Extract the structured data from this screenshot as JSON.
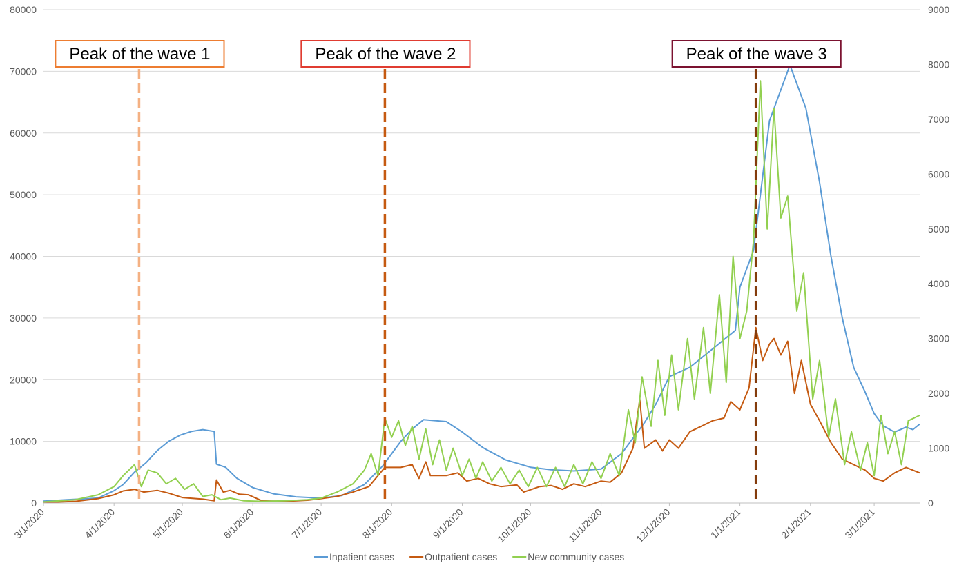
{
  "chart_data": {
    "type": "line",
    "title": "",
    "xlabel": "",
    "ylabel": "",
    "x_ticks": [
      "3/1/2020",
      "4/1/2020",
      "5/1/2020",
      "6/1/2020",
      "7/1/2020",
      "8/1/2020",
      "9/1/2020",
      "10/1/2020",
      "11/1/2020",
      "12/1/2020",
      "1/1/2021",
      "2/1/2021",
      "3/1/2021"
    ],
    "x_range": [
      "2020-03-01",
      "2021-03-21"
    ],
    "y_left_ticks": [
      "0",
      "10000",
      "20000",
      "30000",
      "40000",
      "50000",
      "60000",
      "70000",
      "80000"
    ],
    "y_left_range": [
      0,
      80000
    ],
    "y_right_ticks": [
      "0",
      "1000",
      "2000",
      "3000",
      "4000",
      "5000",
      "6000",
      "7000",
      "8000",
      "9000"
    ],
    "y_right_range": [
      0,
      9000
    ],
    "grid": true,
    "legend_position": "bottom",
    "series": [
      {
        "name": "Inpatient cases",
        "color": "#5B9BD5",
        "axis": "left",
        "points": [
          [
            "2020-03-01",
            300
          ],
          [
            "2020-03-10",
            500
          ],
          [
            "2020-03-20",
            700
          ],
          [
            "2020-03-25",
            800
          ],
          [
            "2020-04-01",
            2000
          ],
          [
            "2020-04-05",
            3000
          ],
          [
            "2020-04-10",
            5000
          ],
          [
            "2020-04-15",
            6500
          ],
          [
            "2020-04-20",
            8500
          ],
          [
            "2020-04-25",
            10000
          ],
          [
            "2020-04-30",
            11000
          ],
          [
            "2020-05-05",
            11600
          ],
          [
            "2020-05-10",
            11900
          ],
          [
            "2020-05-15",
            11600
          ],
          [
            "2020-05-16",
            6300
          ],
          [
            "2020-05-20",
            5800
          ],
          [
            "2020-05-25",
            4000
          ],
          [
            "2020-06-01",
            2500
          ],
          [
            "2020-06-10",
            1500
          ],
          [
            "2020-06-20",
            1000
          ],
          [
            "2020-07-01",
            800
          ],
          [
            "2020-07-10",
            1200
          ],
          [
            "2020-07-20",
            3000
          ],
          [
            "2020-07-28",
            6000
          ],
          [
            "2020-08-05",
            10000
          ],
          [
            "2020-08-10",
            12000
          ],
          [
            "2020-08-15",
            13500
          ],
          [
            "2020-08-25",
            13200
          ],
          [
            "2020-09-01",
            11500
          ],
          [
            "2020-09-10",
            9000
          ],
          [
            "2020-09-20",
            7000
          ],
          [
            "2020-10-01",
            5800
          ],
          [
            "2020-10-10",
            5400
          ],
          [
            "2020-10-20",
            5200
          ],
          [
            "2020-11-01",
            5500
          ],
          [
            "2020-11-10",
            8000
          ],
          [
            "2020-11-20",
            13000
          ],
          [
            "2020-11-25",
            16000
          ],
          [
            "2020-12-01",
            20500
          ],
          [
            "2020-12-10",
            22000
          ],
          [
            "2020-12-20",
            25000
          ],
          [
            "2020-12-30",
            28000
          ],
          [
            "2021-01-01",
            35000
          ],
          [
            "2021-01-07",
            41000
          ],
          [
            "2021-01-10",
            50000
          ],
          [
            "2021-01-14",
            62000
          ],
          [
            "2021-01-18",
            66000
          ],
          [
            "2021-01-21",
            69000
          ],
          [
            "2021-01-23",
            71000
          ],
          [
            "2021-01-27",
            67000
          ],
          [
            "2021-01-30",
            64000
          ],
          [
            "2021-02-05",
            52000
          ],
          [
            "2021-02-10",
            40000
          ],
          [
            "2021-02-15",
            30000
          ],
          [
            "2021-02-20",
            22000
          ],
          [
            "2021-02-25",
            18000
          ],
          [
            "2021-03-01",
            14500
          ],
          [
            "2021-03-05",
            12500
          ],
          [
            "2021-03-10",
            11500
          ],
          [
            "2021-03-15",
            12300
          ],
          [
            "2021-03-18",
            11900
          ],
          [
            "2021-03-21",
            12800
          ]
        ]
      },
      {
        "name": "Outpatient cases",
        "color": "#C55A11",
        "axis": "right",
        "points": [
          [
            "2020-03-01",
            10
          ],
          [
            "2020-03-15",
            30
          ],
          [
            "2020-03-25",
            80
          ],
          [
            "2020-04-01",
            150
          ],
          [
            "2020-04-05",
            220
          ],
          [
            "2020-04-10",
            250
          ],
          [
            "2020-04-14",
            200
          ],
          [
            "2020-04-20",
            230
          ],
          [
            "2020-04-25",
            180
          ],
          [
            "2020-05-01",
            100
          ],
          [
            "2020-05-10",
            70
          ],
          [
            "2020-05-15",
            40
          ],
          [
            "2020-05-16",
            420
          ],
          [
            "2020-05-19",
            200
          ],
          [
            "2020-05-22",
            230
          ],
          [
            "2020-05-26",
            160
          ],
          [
            "2020-05-30",
            150
          ],
          [
            "2020-06-05",
            40
          ],
          [
            "2020-06-15",
            30
          ],
          [
            "2020-06-25",
            50
          ],
          [
            "2020-07-01",
            80
          ],
          [
            "2020-07-08",
            120
          ],
          [
            "2020-07-15",
            200
          ],
          [
            "2020-07-22",
            300
          ],
          [
            "2020-07-29",
            650
          ],
          [
            "2020-08-05",
            650
          ],
          [
            "2020-08-10",
            700
          ],
          [
            "2020-08-13",
            450
          ],
          [
            "2020-08-16",
            750
          ],
          [
            "2020-08-18",
            500
          ],
          [
            "2020-08-25",
            500
          ],
          [
            "2020-08-30",
            550
          ],
          [
            "2020-09-03",
            400
          ],
          [
            "2020-09-08",
            450
          ],
          [
            "2020-09-13",
            350
          ],
          [
            "2020-09-18",
            300
          ],
          [
            "2020-09-25",
            330
          ],
          [
            "2020-09-28",
            200
          ],
          [
            "2020-10-05",
            300
          ],
          [
            "2020-10-10",
            320
          ],
          [
            "2020-10-15",
            250
          ],
          [
            "2020-10-20",
            350
          ],
          [
            "2020-10-25",
            300
          ],
          [
            "2020-11-01",
            400
          ],
          [
            "2020-11-05",
            380
          ],
          [
            "2020-11-10",
            550
          ],
          [
            "2020-11-15",
            1000
          ],
          [
            "2020-11-18",
            1900
          ],
          [
            "2020-11-20",
            1000
          ],
          [
            "2020-11-25",
            1150
          ],
          [
            "2020-11-28",
            950
          ],
          [
            "2020-12-01",
            1150
          ],
          [
            "2020-12-05",
            1000
          ],
          [
            "2020-12-10",
            1300
          ],
          [
            "2020-12-15",
            1400
          ],
          [
            "2020-12-20",
            1500
          ],
          [
            "2020-12-25",
            1550
          ],
          [
            "2020-12-28",
            1850
          ],
          [
            "2021-01-01",
            1700
          ],
          [
            "2021-01-05",
            2100
          ],
          [
            "2021-01-08",
            3200
          ],
          [
            "2021-01-11",
            2600
          ],
          [
            "2021-01-14",
            2900
          ],
          [
            "2021-01-16",
            3000
          ],
          [
            "2021-01-19",
            2700
          ],
          [
            "2021-01-22",
            2950
          ],
          [
            "2021-01-25",
            2000
          ],
          [
            "2021-01-28",
            2600
          ],
          [
            "2021-02-01",
            1800
          ],
          [
            "2021-02-05",
            1500
          ],
          [
            "2021-02-10",
            1100
          ],
          [
            "2021-02-15",
            800
          ],
          [
            "2021-02-20",
            700
          ],
          [
            "2021-02-25",
            600
          ],
          [
            "2021-03-01",
            450
          ],
          [
            "2021-03-05",
            400
          ],
          [
            "2021-03-10",
            550
          ],
          [
            "2021-03-15",
            650
          ],
          [
            "2021-03-21",
            550
          ]
        ]
      },
      {
        "name": "New community cases",
        "color": "#92D050",
        "axis": "right",
        "points": [
          [
            "2020-03-01",
            20
          ],
          [
            "2020-03-15",
            60
          ],
          [
            "2020-03-25",
            150
          ],
          [
            "2020-04-01",
            300
          ],
          [
            "2020-04-05",
            500
          ],
          [
            "2020-04-10",
            700
          ],
          [
            "2020-04-13",
            300
          ],
          [
            "2020-04-16",
            600
          ],
          [
            "2020-04-20",
            550
          ],
          [
            "2020-04-24",
            350
          ],
          [
            "2020-04-28",
            450
          ],
          [
            "2020-05-02",
            250
          ],
          [
            "2020-05-06",
            350
          ],
          [
            "2020-05-10",
            120
          ],
          [
            "2020-05-14",
            150
          ],
          [
            "2020-05-18",
            60
          ],
          [
            "2020-05-22",
            90
          ],
          [
            "2020-05-28",
            40
          ],
          [
            "2020-06-05",
            30
          ],
          [
            "2020-06-15",
            40
          ],
          [
            "2020-06-25",
            60
          ],
          [
            "2020-07-01",
            90
          ],
          [
            "2020-07-08",
            200
          ],
          [
            "2020-07-15",
            350
          ],
          [
            "2020-07-20",
            600
          ],
          [
            "2020-07-23",
            900
          ],
          [
            "2020-07-26",
            500
          ],
          [
            "2020-07-29",
            1550
          ],
          [
            "2020-08-01",
            1200
          ],
          [
            "2020-08-04",
            1500
          ],
          [
            "2020-08-07",
            1050
          ],
          [
            "2020-08-10",
            1400
          ],
          [
            "2020-08-13",
            800
          ],
          [
            "2020-08-16",
            1350
          ],
          [
            "2020-08-19",
            700
          ],
          [
            "2020-08-22",
            1150
          ],
          [
            "2020-08-25",
            600
          ],
          [
            "2020-08-28",
            1000
          ],
          [
            "2020-09-01",
            500
          ],
          [
            "2020-09-04",
            800
          ],
          [
            "2020-09-07",
            450
          ],
          [
            "2020-09-10",
            750
          ],
          [
            "2020-09-14",
            400
          ],
          [
            "2020-09-18",
            650
          ],
          [
            "2020-09-22",
            350
          ],
          [
            "2020-09-26",
            600
          ],
          [
            "2020-09-30",
            300
          ],
          [
            "2020-10-04",
            650
          ],
          [
            "2020-10-08",
            300
          ],
          [
            "2020-10-12",
            650
          ],
          [
            "2020-10-16",
            300
          ],
          [
            "2020-10-20",
            700
          ],
          [
            "2020-10-24",
            350
          ],
          [
            "2020-10-28",
            750
          ],
          [
            "2020-11-01",
            450
          ],
          [
            "2020-11-05",
            900
          ],
          [
            "2020-11-09",
            500
          ],
          [
            "2020-11-13",
            1700
          ],
          [
            "2020-11-16",
            1100
          ],
          [
            "2020-11-19",
            2300
          ],
          [
            "2020-11-23",
            1400
          ],
          [
            "2020-11-26",
            2600
          ],
          [
            "2020-11-29",
            1600
          ],
          [
            "2020-12-02",
            2700
          ],
          [
            "2020-12-05",
            1700
          ],
          [
            "2020-12-09",
            3000
          ],
          [
            "2020-12-12",
            1900
          ],
          [
            "2020-12-16",
            3200
          ],
          [
            "2020-12-19",
            2000
          ],
          [
            "2020-12-23",
            3800
          ],
          [
            "2020-12-26",
            2200
          ],
          [
            "2020-12-29",
            4500
          ],
          [
            "2021-01-01",
            3000
          ],
          [
            "2021-01-04",
            3500
          ],
          [
            "2021-01-07",
            4800
          ],
          [
            "2021-01-10",
            7700
          ],
          [
            "2021-01-13",
            5000
          ],
          [
            "2021-01-16",
            7200
          ],
          [
            "2021-01-19",
            5200
          ],
          [
            "2021-01-22",
            5600
          ],
          [
            "2021-01-26",
            3500
          ],
          [
            "2021-01-29",
            4200
          ],
          [
            "2021-02-02",
            1900
          ],
          [
            "2021-02-05",
            2600
          ],
          [
            "2021-02-09",
            1200
          ],
          [
            "2021-02-12",
            1900
          ],
          [
            "2021-02-16",
            700
          ],
          [
            "2021-02-19",
            1300
          ],
          [
            "2021-02-23",
            600
          ],
          [
            "2021-02-26",
            1100
          ],
          [
            "2021-03-01",
            500
          ],
          [
            "2021-03-04",
            1600
          ],
          [
            "2021-03-07",
            900
          ],
          [
            "2021-03-10",
            1300
          ],
          [
            "2021-03-13",
            700
          ],
          [
            "2021-03-16",
            1500
          ],
          [
            "2021-03-21",
            1600
          ]
        ]
      }
    ],
    "annotations": [
      {
        "label": "Peak of the wave 1",
        "date": "2020-04-12",
        "line_color": "#F4B183",
        "box_color": "#ED7D31"
      },
      {
        "label": "Peak of the wave 2",
        "date": "2020-07-29",
        "line_color": "#C55A11",
        "box_color": "#E03C31"
      },
      {
        "label": "Peak of the wave 3",
        "date": "2021-01-08",
        "line_color": "#843C0C",
        "box_color": "#7B1230"
      }
    ]
  }
}
